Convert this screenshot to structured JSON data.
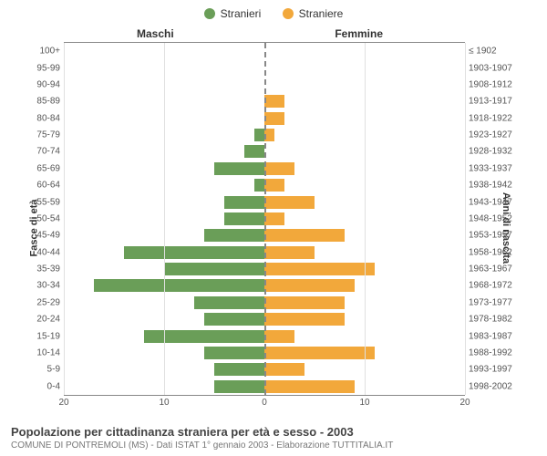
{
  "legend": {
    "male": {
      "label": "Stranieri",
      "color": "#6a9e58"
    },
    "female": {
      "label": "Straniere",
      "color": "#f2a83b"
    }
  },
  "headers": {
    "left": "Maschi",
    "right": "Femmine"
  },
  "axes": {
    "left_title": "Fasce di età",
    "right_title": "Anni di nascita",
    "xmax": 20,
    "xticks_left": [
      20,
      10,
      0
    ],
    "xticks_right": [
      0,
      10,
      20
    ],
    "tick_fontsize": 10,
    "grid_color": "#e0e0e0",
    "border_color": "#888888",
    "zero_line_color": "#888888"
  },
  "rows": [
    {
      "age": "100+",
      "birth": "≤ 1902",
      "m": 0,
      "f": 0
    },
    {
      "age": "95-99",
      "birth": "1903-1907",
      "m": 0,
      "f": 0
    },
    {
      "age": "90-94",
      "birth": "1908-1912",
      "m": 0,
      "f": 0
    },
    {
      "age": "85-89",
      "birth": "1913-1917",
      "m": 0,
      "f": 2
    },
    {
      "age": "80-84",
      "birth": "1918-1922",
      "m": 0,
      "f": 2
    },
    {
      "age": "75-79",
      "birth": "1923-1927",
      "m": 1,
      "f": 1
    },
    {
      "age": "70-74",
      "birth": "1928-1932",
      "m": 2,
      "f": 0
    },
    {
      "age": "65-69",
      "birth": "1933-1937",
      "m": 5,
      "f": 3
    },
    {
      "age": "60-64",
      "birth": "1938-1942",
      "m": 1,
      "f": 2
    },
    {
      "age": "55-59",
      "birth": "1943-1947",
      "m": 4,
      "f": 5
    },
    {
      "age": "50-54",
      "birth": "1948-1952",
      "m": 4,
      "f": 2
    },
    {
      "age": "45-49",
      "birth": "1953-1957",
      "m": 6,
      "f": 8
    },
    {
      "age": "40-44",
      "birth": "1958-1962",
      "m": 14,
      "f": 5
    },
    {
      "age": "35-39",
      "birth": "1963-1967",
      "m": 10,
      "f": 11
    },
    {
      "age": "30-34",
      "birth": "1968-1972",
      "m": 17,
      "f": 9
    },
    {
      "age": "25-29",
      "birth": "1973-1977",
      "m": 7,
      "f": 8
    },
    {
      "age": "20-24",
      "birth": "1978-1982",
      "m": 6,
      "f": 8
    },
    {
      "age": "15-19",
      "birth": "1983-1987",
      "m": 12,
      "f": 3
    },
    {
      "age": "10-14",
      "birth": "1988-1992",
      "m": 6,
      "f": 11
    },
    {
      "age": "5-9",
      "birth": "1993-1997",
      "m": 5,
      "f": 4
    },
    {
      "age": "0-4",
      "birth": "1998-2002",
      "m": 5,
      "f": 9
    }
  ],
  "caption": {
    "title": "Popolazione per cittadinanza straniera per età e sesso - 2003",
    "subtitle": "COMUNE DI PONTREMOLI (MS) - Dati ISTAT 1° gennaio 2003 - Elaborazione TUTTITALIA.IT"
  },
  "style": {
    "background": "#ffffff",
    "font_family": "Arial, Helvetica, sans-serif",
    "caption_title_fontsize": 13,
    "caption_sub_fontsize": 10,
    "axis_title_fontsize": 11,
    "header_fontsize": 12,
    "legend_fontsize": 12
  }
}
